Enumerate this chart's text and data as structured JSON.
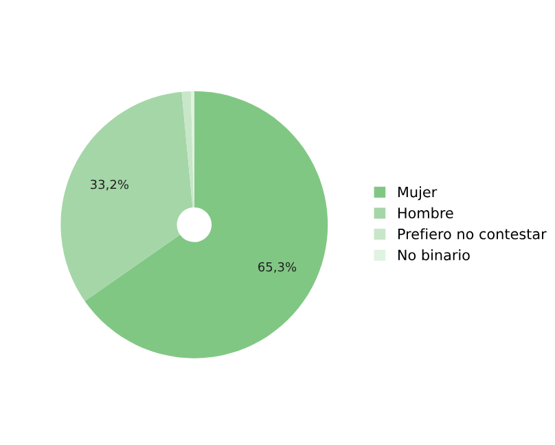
{
  "chart_data": {
    "type": "donut",
    "categories": [
      "Mujer",
      "Hombre",
      "Prefiero no contestar",
      "No binario"
    ],
    "values": [
      65.3,
      33.2,
      1.1,
      0.4
    ],
    "colors": [
      "#81c784",
      "#a5d6a7",
      "#c8e6c9",
      "#e0f2e0"
    ],
    "value_labels": [
      "65,3%",
      "33,2%",
      null,
      null
    ],
    "legend": "right"
  }
}
